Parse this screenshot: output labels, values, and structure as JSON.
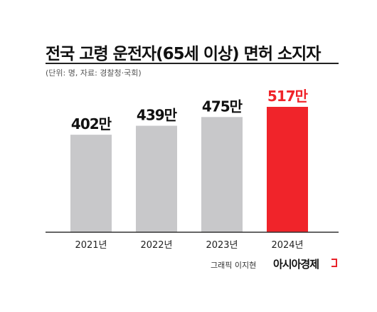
{
  "title": "전국 고령 운전자(65세 이상) 면허 소지자",
  "subtitle": "(단위: 명, 자료: 경찰청·국회)",
  "credit": "그래픽 이지현",
  "brand": "아시아경제",
  "colors": {
    "bar": "#c8c8ca",
    "highlight": "#f0242a",
    "axis": "#333333"
  },
  "chart_data": {
    "type": "bar",
    "categories": [
      "2021년",
      "2022년",
      "2023년",
      "2024년"
    ],
    "values": [
      402,
      439,
      475,
      517
    ],
    "value_labels": [
      "402만",
      "439만",
      "475만",
      "517만"
    ],
    "highlight_index": 3,
    "ylim": [
      0,
      517
    ],
    "grid": false,
    "title": "전국 고령 운전자(65세 이상) 면허 소지자",
    "xlabel": "",
    "ylabel": ""
  }
}
